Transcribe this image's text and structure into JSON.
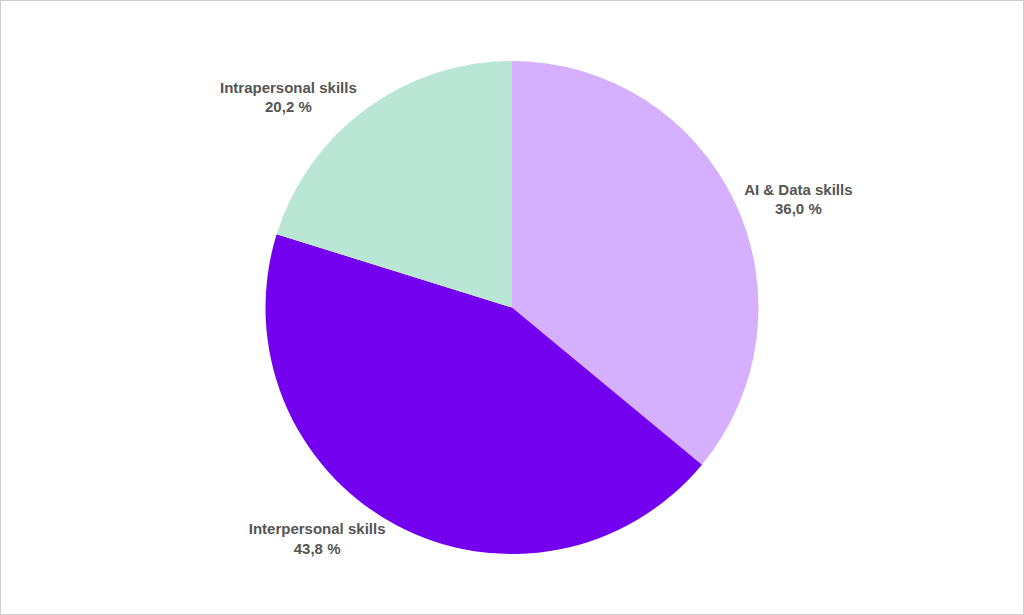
{
  "chart_data": {
    "type": "pie",
    "categories": [
      "AI & Data skills",
      "Interpersonal skills",
      "Intrapersonal skills"
    ],
    "values": [
      36.0,
      43.8,
      20.2
    ],
    "value_labels": [
      "36,0 %",
      "43,8 %",
      "20,2 %"
    ],
    "colors": [
      "#d5b0ff",
      "#7400f0",
      "#b9e6d5"
    ],
    "data_labels": true
  }
}
